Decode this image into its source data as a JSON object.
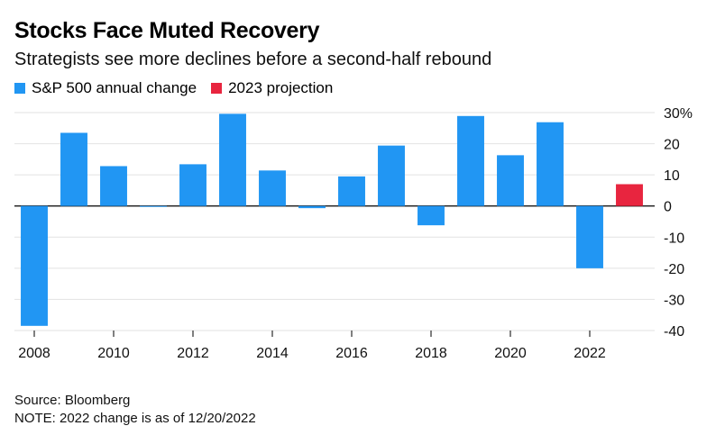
{
  "title": "Stocks Face Muted Recovery",
  "subtitle": "Strategists see more declines before a second-half rebound",
  "legend": [
    {
      "label": "S&P 500 annual change",
      "color": "#2196f3"
    },
    {
      "label": "2023 projection",
      "color": "#e8253f"
    }
  ],
  "footer": {
    "source": "Source: Bloomberg",
    "note": "NOTE: 2022 change is as of 12/20/2022"
  },
  "chart_data": {
    "type": "bar",
    "categories": [
      "2008",
      "2009",
      "2010",
      "2011",
      "2012",
      "2013",
      "2014",
      "2015",
      "2016",
      "2017",
      "2018",
      "2019",
      "2020",
      "2021",
      "2022",
      "2023"
    ],
    "series": [
      {
        "name": "S&P 500 annual change",
        "color": "#2196f3",
        "values": [
          -38.5,
          23.5,
          12.8,
          0.0,
          13.4,
          29.6,
          11.4,
          -0.7,
          9.5,
          19.4,
          -6.2,
          28.9,
          16.3,
          26.9,
          -20.0,
          null
        ]
      },
      {
        "name": "2023 projection",
        "color": "#e8253f",
        "values": [
          null,
          null,
          null,
          null,
          null,
          null,
          null,
          null,
          null,
          null,
          null,
          null,
          null,
          null,
          null,
          7.0
        ]
      }
    ],
    "x_tick_labels": [
      "2008",
      "2010",
      "2012",
      "2014",
      "2016",
      "2018",
      "2020",
      "2022"
    ],
    "y_ticks": [
      30,
      20,
      10,
      0,
      -10,
      -20,
      -30,
      -40
    ],
    "y_tick_labels": [
      "30%",
      "20",
      "10",
      "0",
      "-10",
      "-20",
      "-30",
      "-40"
    ],
    "ylim": [
      -40,
      30
    ],
    "grid": true,
    "legend_position": "top-left",
    "xlabel": "",
    "ylabel": ""
  }
}
